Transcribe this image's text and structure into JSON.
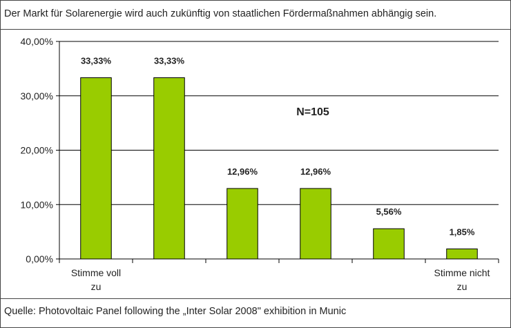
{
  "title": "Der Markt für Solarenergie wird auch zukünftig von staatlichen Fördermaßnahmen abhängig sein.",
  "source": "Quelle: Photovoltaic Panel following the „Inter Solar 2008\" exhibition in Munic",
  "annotation": "N=105",
  "colors": {
    "bar": "#99cc00",
    "bar_border": "#000000",
    "grid": "#000000"
  },
  "chart_data": {
    "type": "bar",
    "title": "Der Markt für Solarenergie wird auch zukünftig von staatlichen Fördermaßnahmen abhängig sein.",
    "categories": [
      "Stimme voll zu",
      "",
      "",
      "",
      "",
      "Stimme nicht zu"
    ],
    "category_lines": [
      [
        "Stimme voll",
        "zu"
      ],
      [],
      [],
      [],
      [],
      [
        "Stimme nicht",
        "zu"
      ]
    ],
    "values": [
      33.33,
      33.33,
      12.96,
      12.96,
      5.56,
      1.85
    ],
    "value_labels": [
      "33,33%",
      "33,33%",
      "12,96%",
      "12,96%",
      "5,56%",
      "1,85%"
    ],
    "ylim": [
      0,
      40
    ],
    "yticks": [
      0,
      10,
      20,
      30,
      40
    ],
    "ytick_labels": [
      "0,00%",
      "10,00%",
      "20,00%",
      "30,00%",
      "40,00%"
    ],
    "grid": true,
    "legend": "none",
    "xlabel": "",
    "ylabel": ""
  }
}
